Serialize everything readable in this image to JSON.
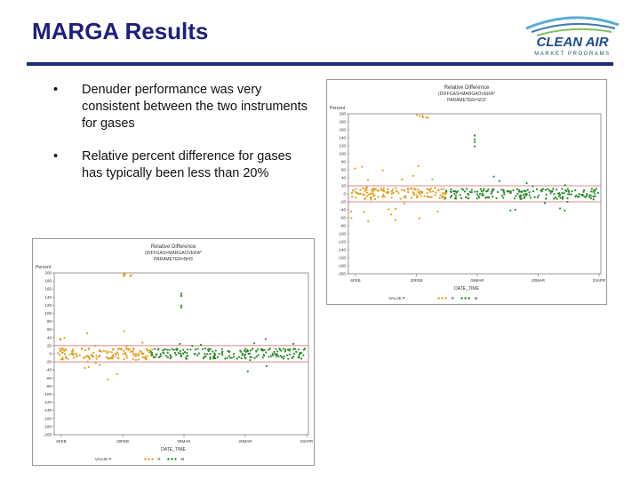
{
  "slide": {
    "title": "MARGA Results",
    "logo_text_main": "CLEAN AIR",
    "logo_text_sub": "MARKET PROGRAMS",
    "bullets": [
      {
        "marker": "•",
        "text": "Denuder performance was very consistent between the two instruments for gases"
      },
      {
        "marker": "•",
        "text": "Relative percent difference for gases has typically been less than 20%"
      }
    ]
  },
  "colors": {
    "title": "#1f1f7a",
    "rule": "#1f2a7a",
    "series1": "#e0a020",
    "series2": "#2a8a2a",
    "ref_line": "#d86060"
  },
  "chart_data": [
    {
      "type": "scatter",
      "title": "Relative Difference",
      "subtitle": "(DIFFGAS=MARGAOVERA*",
      "parameter": "PARAMETER=NH3",
      "ylabel": "Percent",
      "xlabel": "DATE_TIME",
      "yticks": [
        "200",
        "180",
        "160",
        "140",
        "120",
        "100",
        "80",
        "60",
        "40",
        "20",
        "0",
        "-20",
        "-40",
        "-60",
        "-80",
        "-100",
        "-120",
        "-140",
        "-160",
        "-180",
        "-200"
      ],
      "xticks": [
        "6FEB",
        "20FEB",
        "06MAR",
        "20MAR",
        "03APR"
      ],
      "legend_label": "VALUE P",
      "legend_series": [
        "R",
        "M"
      ],
      "ylim": [
        -200,
        200
      ],
      "ref_lines": [
        20,
        -20
      ]
    },
    {
      "type": "scatter",
      "title": "Relative Difference",
      "subtitle": "(DIFFGAS=MARGAOVERA*",
      "parameter": "PARAMETER=SO2",
      "ylabel": "Percent",
      "xlabel": "DATE_TIME",
      "yticks": [
        "200",
        "180",
        "160",
        "140",
        "120",
        "100",
        "80",
        "60",
        "40",
        "20",
        "0",
        "-20",
        "-40",
        "-60",
        "-80",
        "-100",
        "-120",
        "-140",
        "-160",
        "-180",
        "-200"
      ],
      "xticks": [
        "6FEB",
        "20FEB",
        "06MAR",
        "20MAR",
        "03APR"
      ],
      "legend_label": "VALUE P",
      "legend_series": [
        "R",
        "M"
      ],
      "ylim": [
        -200,
        200
      ],
      "ref_lines": [
        20,
        -20
      ]
    }
  ]
}
